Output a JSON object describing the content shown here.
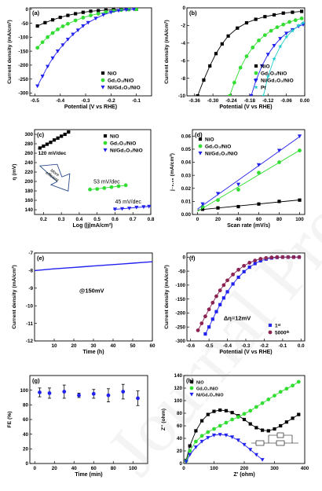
{
  "watermark": "Journal Pre-proof",
  "colors": {
    "NiO": "#000000",
    "Gd2O3/NiO": "#33dd33",
    "Ni/Gd2O3/NiO": "#2222ee",
    "Pt": "#22cccc",
    "5000th": "#8b2252"
  },
  "chart_data": [
    {
      "panel": "(a)",
      "type": "line",
      "xlabel": "Potential (V vs RHE)",
      "ylabel": "Current density (mA/cm²)",
      "xlim": [
        -0.52,
        -0.04
      ],
      "ylim": [
        -310,
        5
      ],
      "xticks": [
        "-0.5",
        "-0.4",
        "-0.3",
        "-0.2",
        "-0.1"
      ],
      "xtick_values": [
        -0.5,
        -0.4,
        -0.3,
        -0.2,
        -0.1
      ],
      "yticks": [
        "-300",
        "-250",
        "-200",
        "-150",
        "-100",
        "-50",
        "0"
      ],
      "ytick_values": [
        -300,
        -250,
        -200,
        -150,
        -100,
        -50,
        0
      ],
      "legend_position": "bottom-right",
      "series": [
        {
          "name": "NiO",
          "color": "#000000",
          "marker": "square",
          "x": [
            -0.49,
            -0.46,
            -0.43,
            -0.4,
            -0.37,
            -0.34,
            -0.31,
            -0.28,
            -0.25,
            -0.22,
            -0.19,
            -0.16,
            -0.13,
            -0.1
          ],
          "y": [
            -60,
            -48,
            -38,
            -29,
            -22,
            -16,
            -11,
            -7,
            -5,
            -3,
            -2,
            -1,
            -0.5,
            0
          ]
        },
        {
          "name": "Gd2O3/NiO",
          "color": "#33dd33",
          "marker": "circle",
          "x": [
            -0.49,
            -0.47,
            -0.45,
            -0.43,
            -0.41,
            -0.39,
            -0.37,
            -0.34,
            -0.31,
            -0.28,
            -0.25,
            -0.22,
            -0.19,
            -0.16,
            -0.13,
            -0.1
          ],
          "y": [
            -138,
            -118,
            -100,
            -85,
            -72,
            -61,
            -52,
            -40,
            -30,
            -22,
            -16,
            -10,
            -6,
            -3,
            -1,
            0
          ]
        },
        {
          "name": "Ni/Gd2O3/NiO",
          "color": "#2222ee",
          "marker": "triangle",
          "x": [
            -0.49,
            -0.47,
            -0.45,
            -0.43,
            -0.41,
            -0.39,
            -0.37,
            -0.35,
            -0.33,
            -0.31,
            -0.29,
            -0.26,
            -0.23,
            -0.2,
            -0.17,
            -0.14,
            -0.11
          ],
          "y": [
            -275,
            -240,
            -205,
            -175,
            -150,
            -128,
            -108,
            -90,
            -75,
            -60,
            -48,
            -33,
            -20,
            -11,
            -5,
            -2,
            0
          ]
        }
      ]
    },
    {
      "panel": "(b)",
      "type": "line",
      "xlabel": "Potential (V vs RHE)",
      "ylabel": "Current density (mA/cm²)",
      "xlim": [
        -0.385,
        0.0
      ],
      "ylim": [
        -10,
        0
      ],
      "xticks": [
        "-0.36",
        "-0.30",
        "-0.24",
        "-0.18",
        "-0.12",
        "-0.06",
        "0.00"
      ],
      "xtick_values": [
        -0.36,
        -0.3,
        -0.24,
        -0.18,
        -0.12,
        -0.06,
        0.0
      ],
      "yticks": [
        "-10",
        "-8",
        "-6",
        "-4",
        "-2",
        "0"
      ],
      "ytick_values": [
        -10,
        -8,
        -6,
        -4,
        -2,
        0
      ],
      "legend_position": "bottom-right",
      "series": [
        {
          "name": "NiO",
          "color": "#000000",
          "marker": "square",
          "x": [
            -0.35,
            -0.33,
            -0.31,
            -0.29,
            -0.27,
            -0.25,
            -0.22,
            -0.19,
            -0.16,
            -0.13,
            -0.1,
            -0.07,
            -0.04,
            -0.01
          ],
          "y": [
            -10,
            -8.2,
            -6.6,
            -5.2,
            -4.1,
            -3.2,
            -2.3,
            -1.7,
            -1.3,
            -1.0,
            -0.8,
            -0.6,
            -0.5,
            -0.4
          ]
        },
        {
          "name": "Gd2O3/NiO",
          "color": "#33dd33",
          "marker": "circle",
          "x": [
            -0.245,
            -0.23,
            -0.21,
            -0.19,
            -0.17,
            -0.15,
            -0.13,
            -0.11,
            -0.09,
            -0.07,
            -0.05,
            -0.03,
            -0.01
          ],
          "y": [
            -10,
            -8.5,
            -6.8,
            -5.5,
            -4.5,
            -3.7,
            -3.1,
            -2.6,
            -2.2,
            -1.9,
            -1.6,
            -1.4,
            -1.2
          ]
        },
        {
          "name": "Ni/Gd2O3/NiO",
          "color": "#2222ee",
          "marker": "triangle",
          "x": [
            -0.175,
            -0.16,
            -0.14,
            -0.12,
            -0.1,
            -0.08,
            -0.06,
            -0.04,
            -0.02,
            -0.005
          ],
          "y": [
            -10,
            -8.3,
            -6.6,
            -5.3,
            -4.3,
            -3.5,
            -2.9,
            -2.5,
            -2.1,
            -1.9
          ]
        },
        {
          "name": "Pt",
          "color": "#22cccc",
          "marker": "star",
          "x": [
            -0.135,
            -0.12,
            -0.1,
            -0.08,
            -0.06,
            -0.04,
            -0.02,
            -0.005
          ],
          "y": [
            -10,
            -7.8,
            -5.8,
            -4.4,
            -3.3,
            -2.6,
            -2.0,
            -1.7
          ]
        }
      ]
    },
    {
      "panel": "(c)",
      "type": "scatter",
      "xlabel": "Log (|j|mA/cm²)",
      "ylabel": "η (mV)",
      "xlim": [
        0.15,
        0.8
      ],
      "ylim": [
        130,
        310
      ],
      "xticks": [
        "0.2",
        "0.3",
        "0.4",
        "0.5",
        "0.6",
        "0.7",
        "0.8"
      ],
      "xtick_values": [
        0.2,
        0.3,
        0.4,
        0.5,
        0.6,
        0.7,
        0.8
      ],
      "yticks": [
        "140",
        "160",
        "180",
        "200",
        "220",
        "240",
        "260",
        "280",
        "300"
      ],
      "ytick_values": [
        140,
        160,
        180,
        200,
        220,
        240,
        260,
        280,
        300
      ],
      "legend_position": "top-right",
      "annotations": [
        "120 mV/dec",
        "53 mV/dec",
        "45 mV/dec",
        "More efficient"
      ],
      "series": [
        {
          "name": "NiO",
          "color": "#000000",
          "marker": "square",
          "x": [
            0.18,
            0.2,
            0.22,
            0.24,
            0.26,
            0.28,
            0.3,
            0.32,
            0.34
          ],
          "y": [
            271,
            275,
            279,
            283,
            288,
            292,
            296,
            300,
            305
          ]
        },
        {
          "name": "Gd2O3/NiO",
          "color": "#33dd33",
          "marker": "circle",
          "x": [
            0.46,
            0.5,
            0.54,
            0.58,
            0.62,
            0.66
          ],
          "y": [
            183,
            184,
            186,
            188,
            190,
            192
          ]
        },
        {
          "name": "Ni/Gd2O3/NiO",
          "color": "#2222ee",
          "marker": "triangle",
          "x": [
            0.6,
            0.64,
            0.68,
            0.72,
            0.76,
            0.79
          ],
          "y": [
            141,
            142,
            143,
            145,
            146,
            147
          ]
        }
      ]
    },
    {
      "panel": "(d)",
      "type": "scatter",
      "xlabel": "Scan rate (mV/s)",
      "ylabel": "j₋₀.₃₅ (mA/cm²)",
      "xlim": [
        -5,
        105
      ],
      "ylim": [
        0,
        0.065
      ],
      "xticks": [
        "0",
        "20",
        "40",
        "60",
        "80",
        "100"
      ],
      "xtick_values": [
        0,
        20,
        40,
        60,
        80,
        100
      ],
      "yticks": [
        "0.00",
        "0.01",
        "0.02",
        "0.03",
        "0.04",
        "0.05",
        "0.06"
      ],
      "ytick_values": [
        0,
        0.01,
        0.02,
        0.03,
        0.04,
        0.05,
        0.06
      ],
      "legend_position": "top-left",
      "series": [
        {
          "name": "NiO",
          "color": "#000000",
          "marker": "square",
          "x": [
            5,
            20,
            40,
            60,
            80,
            100
          ],
          "y": [
            0.004,
            0.005,
            0.006,
            0.008,
            0.01,
            0.011
          ]
        },
        {
          "name": "Gd2O3/NiO",
          "color": "#33dd33",
          "marker": "circle",
          "x": [
            5,
            20,
            40,
            60,
            80,
            100
          ],
          "y": [
            0.006,
            0.011,
            0.019,
            0.032,
            0.04,
            0.049
          ]
        },
        {
          "name": "Ni/Gd2O3/NiO",
          "color": "#2222ee",
          "marker": "triangle",
          "x": [
            5,
            20,
            40,
            60,
            80,
            100
          ],
          "y": [
            0.008,
            0.016,
            0.023,
            0.038,
            0.049,
            0.06
          ]
        }
      ]
    },
    {
      "panel": "(e)",
      "type": "line",
      "xlabel": "Time (h)",
      "ylabel": "Current density (mA/cm²)",
      "xlim": [
        0,
        60
      ],
      "ylim": [
        -12,
        -7
      ],
      "xticks": [
        "10",
        "20",
        "30",
        "40",
        "50",
        "60"
      ],
      "xtick_values": [
        10,
        20,
        30,
        40,
        50,
        60
      ],
      "yticks": [
        "-12",
        "-11",
        "-10",
        "-9",
        "-8",
        "-7"
      ],
      "ytick_values": [
        -12,
        -11,
        -10,
        -9,
        -8,
        -7
      ],
      "annotations": [
        "@150mV"
      ],
      "series": [
        {
          "name": "Ni/Gd2O3/NiO",
          "color": "#2222ee",
          "marker": "none",
          "x": [
            0,
            5,
            10,
            15,
            20,
            25,
            30,
            35,
            40,
            45,
            50,
            55,
            60
          ],
          "y": [
            -8.0,
            -7.95,
            -7.9,
            -7.86,
            -7.82,
            -7.78,
            -7.74,
            -7.7,
            -7.66,
            -7.62,
            -7.58,
            -7.54,
            -7.5
          ]
        }
      ]
    },
    {
      "panel": "(f)",
      "type": "line",
      "xlabel": "Potential (V vs RHE)",
      "ylabel": "Current density (mA/cm²)",
      "xlim": [
        -0.62,
        0.02
      ],
      "ylim": [
        -300,
        15
      ],
      "xticks": [
        "-0.6",
        "-0.5",
        "-0.4",
        "-0.3",
        "-0.2",
        "-0.1",
        "0.0"
      ],
      "xtick_values": [
        -0.6,
        -0.5,
        -0.4,
        -0.3,
        -0.2,
        -0.1,
        0.0
      ],
      "yticks": [
        "-300",
        "-250",
        "-200",
        "-150",
        "-100",
        "-50",
        "0"
      ],
      "ytick_values": [
        -300,
        -250,
        -200,
        -150,
        -100,
        -50,
        0
      ],
      "annotations": [
        "Δη=12mV"
      ],
      "legend_position": "bottom-right",
      "series": [
        {
          "name": "1st",
          "color": "#2222ee",
          "marker": "square",
          "x": [
            -0.52,
            -0.5,
            -0.48,
            -0.46,
            -0.44,
            -0.42,
            -0.4,
            -0.37,
            -0.34,
            -0.31,
            -0.28,
            -0.25,
            -0.22,
            -0.19,
            -0.16,
            -0.13,
            -0.1,
            -0.07,
            -0.04,
            -0.01
          ],
          "y": [
            -275,
            -250,
            -222,
            -195,
            -170,
            -146,
            -124,
            -96,
            -72,
            -52,
            -36,
            -23,
            -13,
            -7,
            -3,
            -1,
            0,
            0,
            0,
            0
          ]
        },
        {
          "name": "5000th",
          "color": "#8b2252",
          "marker": "circle",
          "x": [
            -0.56,
            -0.54,
            -0.52,
            -0.5,
            -0.48,
            -0.46,
            -0.44,
            -0.42,
            -0.4,
            -0.37,
            -0.34,
            -0.31,
            -0.28,
            -0.25,
            -0.22,
            -0.19,
            -0.16,
            -0.13,
            -0.1,
            -0.07,
            -0.04,
            -0.01
          ],
          "y": [
            -262,
            -237,
            -212,
            -187,
            -163,
            -140,
            -119,
            -100,
            -83,
            -62,
            -45,
            -31,
            -20,
            -12,
            -6,
            -3,
            -1,
            0,
            0,
            0,
            0,
            0
          ]
        }
      ]
    },
    {
      "panel": "(g)",
      "type": "scatter",
      "xlabel": "Time (min)",
      "ylabel": "FE (%)",
      "xlim": [
        -5,
        115
      ],
      "ylim": [
        0,
        120
      ],
      "xticks": [
        "0",
        "20",
        "40",
        "60",
        "80",
        "100"
      ],
      "xtick_values": [
        0,
        20,
        40,
        60,
        80,
        100
      ],
      "yticks": [
        "0",
        "20",
        "40",
        "60",
        "80",
        "100"
      ],
      "ytick_values": [
        0,
        20,
        40,
        60,
        80,
        100
      ],
      "series": [
        {
          "name": "FE",
          "color": "#2222ee",
          "marker": "circle",
          "x": [
            5,
            15,
            30,
            45,
            60,
            75,
            90,
            105
          ],
          "y": [
            97,
            96,
            98,
            93,
            95,
            93,
            98,
            89
          ],
          "err": [
            6,
            7,
            9,
            3,
            6,
            9,
            10,
            10
          ]
        }
      ]
    },
    {
      "panel": "(h)",
      "type": "scatter",
      "xlabel": "Z' (ohm)",
      "ylabel": "Z'' (ohm)",
      "xlim": [
        0,
        400
      ],
      "ylim": [
        0,
        140
      ],
      "xticks": [
        "0",
        "100",
        "200",
        "300",
        "400"
      ],
      "xtick_values": [
        0,
        100,
        200,
        300,
        400
      ],
      "yticks": [
        "0",
        "20",
        "40",
        "60",
        "80",
        "100",
        "120",
        "140"
      ],
      "ytick_values": [
        0,
        20,
        40,
        60,
        80,
        100,
        120,
        140
      ],
      "legend_position": "top-left",
      "series": [
        {
          "name": "NiO",
          "color": "#000000",
          "marker": "square",
          "x": [
            8,
            20,
            40,
            60,
            80,
            100,
            120,
            140,
            160,
            180,
            200,
            220,
            240,
            260,
            280,
            300,
            320,
            340,
            360,
            380
          ],
          "y": [
            5,
            28,
            52,
            68,
            78,
            83,
            85,
            84,
            81,
            76,
            70,
            63,
            57,
            53,
            52,
            55,
            60,
            66,
            72,
            78
          ]
        },
        {
          "name": "Gd2O3/NiO",
          "color": "#33dd33",
          "marker": "circle",
          "x": [
            8,
            20,
            40,
            60,
            80,
            100,
            120,
            140,
            160,
            180,
            200,
            220,
            240,
            260,
            280,
            300,
            320,
            340,
            360,
            380
          ],
          "y": [
            4,
            20,
            35,
            44,
            50,
            55,
            60,
            65,
            70,
            74,
            79,
            84,
            90,
            96,
            102,
            108,
            114,
            119,
            124,
            130
          ]
        },
        {
          "name": "Ni/Gd2O3/NiO",
          "color": "#2222ee",
          "marker": "triangle",
          "x": [
            8,
            20,
            40,
            60,
            80,
            100,
            120,
            140,
            160,
            180,
            200,
            220,
            240,
            260
          ],
          "y": [
            3,
            14,
            26,
            35,
            41,
            45,
            46,
            45,
            42,
            37,
            30,
            22,
            14,
            6
          ]
        }
      ]
    }
  ]
}
